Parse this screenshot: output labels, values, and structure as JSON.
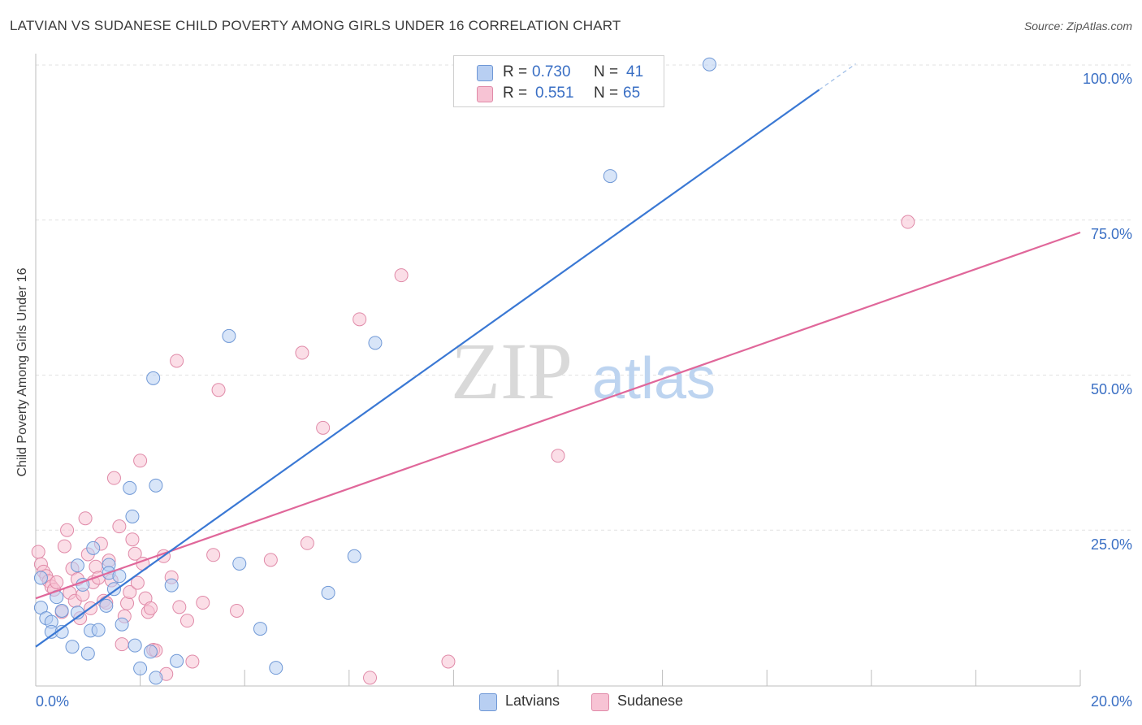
{
  "title": "LATVIAN VS SUDANESE CHILD POVERTY AMONG GIRLS UNDER 16 CORRELATION CHART",
  "source": "Source: ZipAtlas.com",
  "watermark": {
    "zip": "ZIP",
    "atlas": "atlas"
  },
  "legend": {
    "r_label": "R =",
    "n_label": "N =",
    "latvian": {
      "r": "0.730",
      "n": "41"
    },
    "sudanese": {
      "r": "0.551",
      "n": "65"
    }
  },
  "chart_data": {
    "type": "scatter",
    "title": "LATVIAN VS SUDANESE CHILD POVERTY AMONG GIRLS UNDER 16 CORRELATION CHART",
    "xlabel": "",
    "ylabel": "Child Poverty Among Girls Under 16",
    "xlim": [
      0,
      20
    ],
    "ylim": [
      0,
      100
    ],
    "x_ticks": [
      "0.0%",
      "20.0%"
    ],
    "y_ticks": [
      "25.0%",
      "50.0%",
      "75.0%",
      "100.0%"
    ],
    "y_tick_values": [
      25,
      50,
      75,
      100
    ],
    "grid": true,
    "legend_position": "bottom",
    "colors": {
      "latvians": "#3a78d4",
      "sudanese": "#e0679a",
      "latvians_fill": "#b8cff2",
      "sudanese_fill": "#f7c3d4"
    },
    "series": [
      {
        "name": "Latvians",
        "r": 0.73,
        "n": 41,
        "trend": {
          "x0": 0,
          "y0": 6.2,
          "x1": 15.0,
          "y1": 96.0,
          "dash_to_x": 15.7
        },
        "points": [
          [
            0.1,
            17.3
          ],
          [
            0.1,
            12.5
          ],
          [
            0.2,
            10.8
          ],
          [
            0.3,
            10.2
          ],
          [
            0.3,
            8.6
          ],
          [
            0.4,
            14.2
          ],
          [
            0.5,
            12.0
          ],
          [
            0.5,
            8.6
          ],
          [
            0.7,
            6.2
          ],
          [
            0.8,
            11.7
          ],
          [
            0.8,
            19.3
          ],
          [
            0.9,
            16.2
          ],
          [
            1.0,
            5.1
          ],
          [
            1.05,
            8.8
          ],
          [
            1.1,
            22.1
          ],
          [
            1.2,
            8.9
          ],
          [
            1.4,
            19.4
          ],
          [
            1.4,
            18.1
          ],
          [
            1.5,
            15.5
          ],
          [
            1.6,
            17.6
          ],
          [
            1.65,
            9.8
          ],
          [
            1.8,
            31.8
          ],
          [
            1.85,
            27.2
          ],
          [
            1.9,
            6.4
          ],
          [
            2.0,
            2.7
          ],
          [
            2.2,
            5.4
          ],
          [
            2.25,
            49.5
          ],
          [
            2.3,
            32.2
          ],
          [
            2.3,
            1.2
          ],
          [
            2.6,
            16.1
          ],
          [
            2.7,
            3.9
          ],
          [
            3.7,
            56.3
          ],
          [
            3.9,
            19.6
          ],
          [
            4.3,
            9.1
          ],
          [
            4.6,
            2.8
          ],
          [
            5.6,
            14.9
          ],
          [
            6.1,
            20.8
          ],
          [
            6.5,
            55.2
          ],
          [
            11.0,
            82.1
          ],
          [
            12.9,
            100.1
          ],
          [
            1.35,
            12.8
          ]
        ]
      },
      {
        "name": "Sudanese",
        "r": 0.551,
        "n": 65,
        "trend": {
          "x0": 0,
          "y0": 14.0,
          "x1": 20,
          "y1": 73.0
        },
        "points": [
          [
            0.05,
            21.5
          ],
          [
            0.1,
            19.5
          ],
          [
            0.15,
            18.3
          ],
          [
            0.2,
            17.6
          ],
          [
            0.25,
            16.8
          ],
          [
            0.3,
            15.9
          ],
          [
            0.35,
            15.4
          ],
          [
            0.4,
            16.6
          ],
          [
            0.5,
            11.8
          ],
          [
            0.55,
            22.4
          ],
          [
            0.6,
            25.0
          ],
          [
            0.65,
            14.9
          ],
          [
            0.7,
            18.8
          ],
          [
            0.75,
            13.6
          ],
          [
            0.8,
            17.1
          ],
          [
            0.85,
            10.8
          ],
          [
            0.9,
            14.6
          ],
          [
            0.95,
            26.9
          ],
          [
            1.0,
            21.1
          ],
          [
            1.05,
            12.4
          ],
          [
            1.1,
            16.6
          ],
          [
            1.15,
            19.1
          ],
          [
            1.2,
            17.3
          ],
          [
            1.25,
            22.8
          ],
          [
            1.3,
            13.6
          ],
          [
            1.35,
            13.3
          ],
          [
            1.4,
            20.1
          ],
          [
            1.45,
            16.9
          ],
          [
            1.5,
            33.4
          ],
          [
            1.6,
            25.6
          ],
          [
            1.65,
            6.6
          ],
          [
            1.7,
            11.1
          ],
          [
            1.75,
            13.2
          ],
          [
            1.8,
            15.0
          ],
          [
            1.85,
            23.5
          ],
          [
            1.9,
            21.2
          ],
          [
            1.95,
            16.5
          ],
          [
            2.0,
            36.2
          ],
          [
            2.05,
            19.6
          ],
          [
            2.1,
            14.0
          ],
          [
            2.15,
            11.8
          ],
          [
            2.2,
            12.4
          ],
          [
            2.25,
            5.7
          ],
          [
            2.3,
            5.6
          ],
          [
            2.45,
            20.8
          ],
          [
            2.5,
            1.8
          ],
          [
            2.6,
            17.4
          ],
          [
            2.7,
            52.3
          ],
          [
            2.75,
            12.6
          ],
          [
            2.9,
            10.4
          ],
          [
            3.0,
            3.8
          ],
          [
            3.2,
            13.3
          ],
          [
            3.4,
            21.0
          ],
          [
            3.5,
            47.6
          ],
          [
            3.85,
            12.0
          ],
          [
            4.5,
            20.2
          ],
          [
            5.1,
            53.6
          ],
          [
            5.2,
            22.9
          ],
          [
            5.5,
            41.5
          ],
          [
            6.2,
            59.0
          ],
          [
            6.4,
            1.2
          ],
          [
            7.0,
            66.1
          ],
          [
            7.9,
            3.8
          ],
          [
            10.0,
            37.0
          ],
          [
            16.7,
            74.7
          ]
        ]
      }
    ]
  }
}
